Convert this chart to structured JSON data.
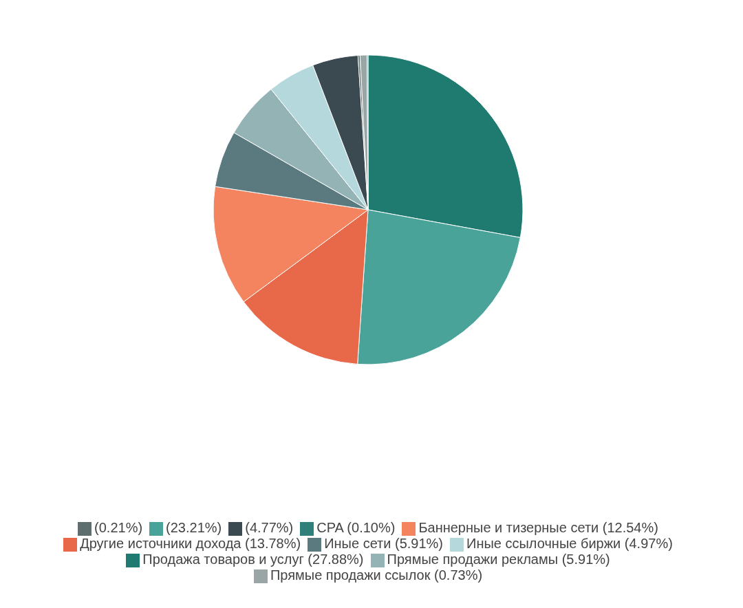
{
  "chart_data": {
    "type": "pie",
    "categories": [
      "Продажа товаров и услуг (27.88%)",
      "(23.21%)",
      "Другие источники дохода (13.78%)",
      "Баннерные и тизерные сети (12.54%)",
      "Иные сети (5.91%)",
      "Прямые продажи рекламы (5.91%)",
      "Иные ссылочные биржи (4.97%)",
      "(4.77%)",
      "(0.21%)",
      "Прямые продажи ссылок (0.73%)",
      "CPA (0.10%)"
    ],
    "values": [
      27.88,
      23.21,
      13.78,
      12.54,
      5.91,
      5.91,
      4.97,
      4.77,
      0.21,
      0.73,
      0.1
    ],
    "colors": [
      "#1f7a70",
      "#4aa399",
      "#e8694a",
      "#f4845f",
      "#5a7a80",
      "#93b3b5",
      "#b5d8dd",
      "#3a4a50",
      "#5e6e6e",
      "#9aa5a5",
      "#2e8078"
    ],
    "legend": "bottom"
  }
}
